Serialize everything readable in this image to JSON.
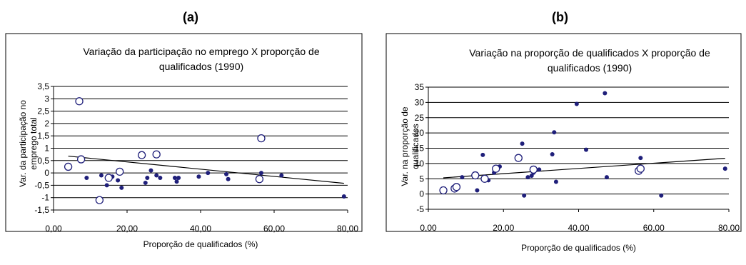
{
  "panels": [
    {
      "label": "(a)"
    },
    {
      "label": "(b)"
    }
  ],
  "chart_data": [
    {
      "type": "scatter",
      "title_lines": [
        "Variação da participação no emprego X proporção de",
        "qualificados (1990)"
      ],
      "xlabel": "Proporção de qualificados (%)",
      "ylabel_lines": [
        "Var. da participação no",
        "emprego total"
      ],
      "xlim": [
        0,
        80
      ],
      "ylim": [
        -1.5,
        3.5
      ],
      "xticks": [
        0,
        20,
        40,
        60,
        80
      ],
      "xtick_labels": [
        "0,00",
        "20,00",
        "40,00",
        "60,00",
        "80,00"
      ],
      "yticks": [
        -1.5,
        -1,
        -0.5,
        0,
        0.5,
        1,
        1.5,
        2,
        2.5,
        3,
        3.5
      ],
      "ytick_labels": [
        "-1,5",
        "-1",
        "-0,5",
        "0",
        "0,5",
        "1",
        "1,5",
        "2",
        "2,5",
        "3",
        "3,5"
      ],
      "grid": true,
      "series": [
        {
          "marker": "filled",
          "points": [
            [
              9,
              -0.2
            ],
            [
              13,
              -0.1
            ],
            [
              14.5,
              -0.5
            ],
            [
              16,
              -0.15
            ],
            [
              17.5,
              -0.3
            ],
            [
              18.5,
              -0.6
            ],
            [
              25.5,
              -0.2
            ],
            [
              25,
              -0.4
            ],
            [
              26.5,
              0.1
            ],
            [
              28,
              -0.1
            ],
            [
              29,
              -0.2
            ],
            [
              33,
              -0.2
            ],
            [
              33.5,
              -0.35
            ],
            [
              34,
              -0.2
            ],
            [
              39.5,
              -0.15
            ],
            [
              42,
              0
            ],
            [
              47,
              -0.05
            ],
            [
              47.5,
              -0.25
            ],
            [
              56.5,
              0
            ],
            [
              62,
              -0.1
            ],
            [
              79,
              -0.95
            ]
          ]
        },
        {
          "marker": "hollow",
          "points": [
            [
              4,
              0.25
            ],
            [
              7,
              2.9
            ],
            [
              7.5,
              0.55
            ],
            [
              12.5,
              -1.1
            ],
            [
              15,
              -0.2
            ],
            [
              18,
              0.05
            ],
            [
              24,
              0.72
            ],
            [
              28,
              0.75
            ],
            [
              56,
              -0.25
            ],
            [
              56.5,
              1.4
            ]
          ]
        }
      ],
      "trendline": [
        [
          4,
          0.68
        ],
        [
          79,
          -0.42
        ]
      ],
      "colors": {
        "filled": "#1f1f7a",
        "hollow": "#1f1f7a"
      }
    },
    {
      "type": "scatter",
      "title_lines": [
        "Variação na proporção de qualificados X proporção de",
        "qualificados (1990)"
      ],
      "xlabel": "Proporção de qualificados (%)",
      "ylabel_lines": [
        "Var. na proporção de",
        "qualificados"
      ],
      "xlim": [
        0,
        80
      ],
      "ylim": [
        -5,
        35
      ],
      "xticks": [
        0,
        20,
        40,
        60,
        80
      ],
      "xtick_labels": [
        "0,00",
        "20,00",
        "40,00",
        "60,00",
        "80,00"
      ],
      "yticks": [
        -5,
        0,
        5,
        10,
        15,
        20,
        25,
        30,
        35
      ],
      "ytick_labels": [
        "-5",
        "0",
        "5",
        "10",
        "15",
        "20",
        "25",
        "30",
        "35"
      ],
      "grid": true,
      "series": [
        {
          "marker": "filled",
          "points": [
            [
              9,
              5.5
            ],
            [
              13,
              1.2
            ],
            [
              14.5,
              12.8
            ],
            [
              16,
              4.5
            ],
            [
              17.5,
              7
            ],
            [
              19,
              9
            ],
            [
              25,
              16.5
            ],
            [
              25.5,
              -0.5
            ],
            [
              26.5,
              5.5
            ],
            [
              27.5,
              6
            ],
            [
              28,
              7
            ],
            [
              29.5,
              8
            ],
            [
              33,
              13
            ],
            [
              33.5,
              20.2
            ],
            [
              34,
              4
            ],
            [
              39.5,
              29.5
            ],
            [
              42,
              14.5
            ],
            [
              47,
              33
            ],
            [
              47.5,
              5.5
            ],
            [
              56.5,
              11.8
            ],
            [
              62,
              -0.5
            ],
            [
              79,
              8.3
            ]
          ]
        },
        {
          "marker": "hollow",
          "points": [
            [
              4,
              1.2
            ],
            [
              7,
              1.8
            ],
            [
              7.5,
              2.3
            ],
            [
              12.5,
              6.1
            ],
            [
              15,
              5
            ],
            [
              18,
              8.3
            ],
            [
              24,
              11.8
            ],
            [
              28,
              8
            ],
            [
              56,
              7.6
            ],
            [
              56.5,
              8.3
            ]
          ]
        }
      ],
      "trendline": [
        [
          4,
          5.3
        ],
        [
          79,
          11.7
        ]
      ],
      "colors": {
        "filled": "#1f1f7a",
        "hollow": "#1f1f7a"
      }
    }
  ]
}
